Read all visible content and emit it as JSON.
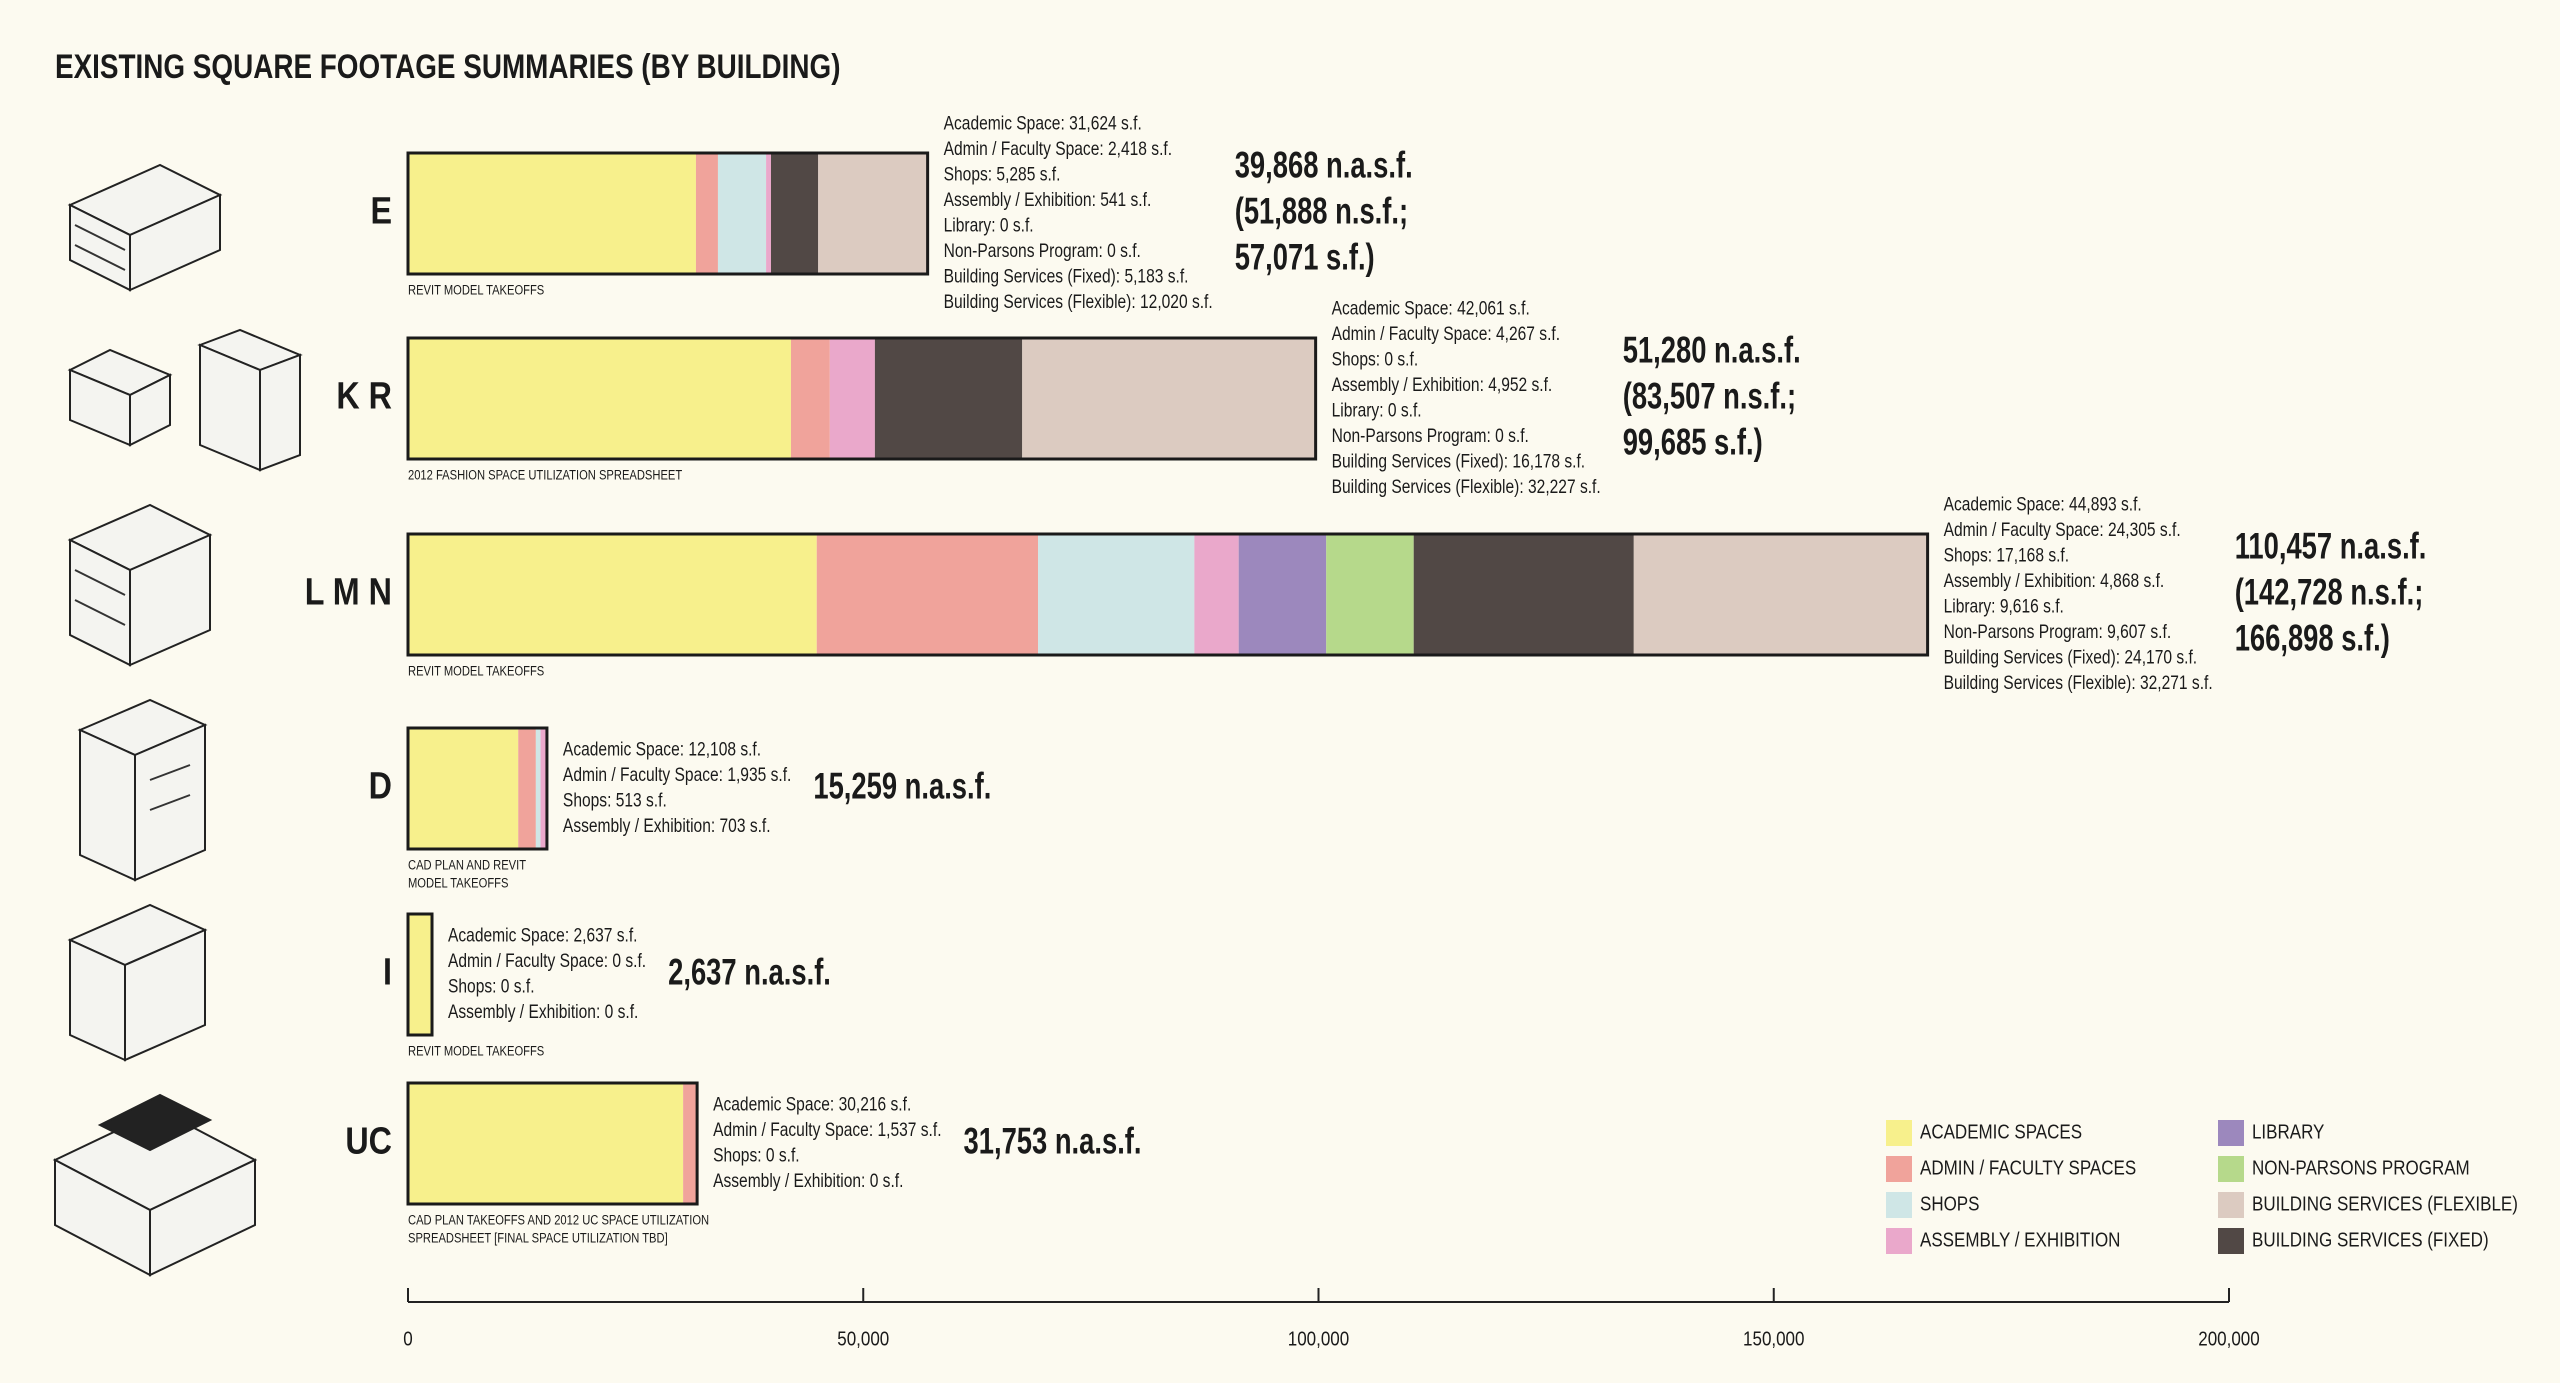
{
  "chart_data": {
    "type": "bar",
    "orientation": "horizontal",
    "stacked": true,
    "title": "EXISTING SQUARE FOOTAGE SUMMARIES (BY BUILDING)",
    "categories": [
      "E",
      "K R",
      "L M N",
      "D",
      "I",
      "UC"
    ],
    "series": [
      {
        "name": "ACADEMIC SPACES",
        "color": "#f7f08c",
        "values": [
          31624,
          42061,
          44893,
          12108,
          2637,
          30216
        ],
        "value_labels": [
          "Academic Space: 31,624 s.f.",
          "Academic Space: 42,061 s.f.",
          "Academic Space: 44,893 s.f.",
          "Academic Space: 12,108 s.f.",
          "Academic Space: 2,637 s.f.",
          "Academic Space: 30,216 s.f."
        ]
      },
      {
        "name": "ADMIN / FACULTY SPACES",
        "color": "#f0a39b",
        "values": [
          2418,
          4267,
          24305,
          1935,
          0,
          1537
        ],
        "value_labels": [
          "Admin / Faculty Space: 2,418 s.f.",
          "Admin / Faculty Space: 4,267 s.f.",
          "Admin / Faculty Space: 24,305 s.f.",
          "Admin / Faculty Space: 1,935 s.f.",
          "Admin / Faculty Space: 0 s.f.",
          "Admin / Faculty Space: 1,537 s.f."
        ]
      },
      {
        "name": "SHOPS",
        "color": "#cfe6e6",
        "values": [
          5285,
          0,
          17168,
          513,
          0,
          0
        ],
        "value_labels": [
          "Shops: 5,285 s.f.",
          "Shops: 0 s.f.",
          "Shops: 17,168 s.f.",
          "Shops: 513 s.f.",
          "Shops: 0 s.f.",
          "Shops: 0 s.f."
        ]
      },
      {
        "name": "ASSEMBLY / EXHIBITION",
        "color": "#eaa8cb",
        "values": [
          541,
          4952,
          4868,
          703,
          0,
          0
        ],
        "value_labels": [
          "Assembly / Exhibition: 541 s.f.",
          "Assembly / Exhibition: 4,952 s.f.",
          "Assembly / Exhibition: 4,868 s.f.",
          "Assembly / Exhibition: 703 s.f.",
          "Assembly / Exhibition: 0 s.f.",
          "Assembly / Exhibition: 0 s.f."
        ]
      },
      {
        "name": "LIBRARY",
        "color": "#9c88bd",
        "values": [
          0,
          0,
          9616,
          0,
          0,
          0
        ],
        "value_labels": [
          "Library: 0 s.f.",
          "Library: 0 s.f.",
          "Library: 9,616 s.f.",
          null,
          null,
          null
        ]
      },
      {
        "name": "NON-PARSONS PROGRAM",
        "color": "#b6d98b",
        "values": [
          0,
          0,
          9607,
          0,
          0,
          0
        ],
        "value_labels": [
          "Non-Parsons Program: 0 s.f.",
          "Non-Parsons Program: 0 s.f.",
          "Non-Parsons Program: 9,607 s.f.",
          null,
          null,
          null
        ]
      },
      {
        "name": "BUILDING SERVICES (FIXED)",
        "color": "#514845",
        "values": [
          5183,
          16178,
          24170,
          0,
          0,
          0
        ],
        "value_labels": [
          "Building Services (Fixed): 5,183 s.f.",
          "Building Services (Fixed): 16,178 s.f.",
          "Building Services (Fixed): 24,170 s.f.",
          null,
          null,
          null
        ]
      },
      {
        "name": "BUILDING SERVICES (FLEXIBLE)",
        "color": "#dccbc1",
        "values": [
          12020,
          32227,
          32271,
          0,
          0,
          0
        ],
        "value_labels": [
          "Building Services (Flexible): 12,020 s.f.",
          "Building Services (Flexible): 32,227 s.f.",
          "Building Services (Flexible): 32,271 s.f.",
          null,
          null,
          null
        ]
      }
    ],
    "totals": [
      [
        "39,868 n.a.s.f.",
        "(51,888 n.s.f.;",
        "57,071 s.f.)"
      ],
      [
        "51,280 n.a.s.f.",
        "(83,507 n.s.f.;",
        "99,685 s.f.)"
      ],
      [
        "110,457 n.a.s.f.",
        "(142,728 n.s.f.;",
        "166,898 s.f.)"
      ],
      [
        "15,259 n.a.s.f."
      ],
      [
        "2,637 n.a.s.f."
      ],
      [
        "31,753 n.a.s.f."
      ]
    ],
    "notes": [
      [
        "REVIT MODEL TAKEOFFS"
      ],
      [
        "2012 FASHION SPACE UTILIZATION SPREADSHEET"
      ],
      [
        "REVIT MODEL TAKEOFFS"
      ],
      [
        "CAD PLAN AND REVIT",
        "MODEL TAKEOFFS"
      ],
      [
        "REVIT MODEL TAKEOFFS"
      ],
      [
        "CAD PLAN TAKEOFFS AND 2012 UC SPACE UTILIZATION",
        "SPREADSHEET [FINAL SPACE UTILIZATION TBD]"
      ]
    ],
    "xlim": [
      0,
      200000
    ],
    "xticks": [
      0,
      {
        "value": 50000,
        "label": "50,000"
      },
      {
        "value": 100000,
        "label": "100,000"
      },
      {
        "value": 150000,
        "label": "150,000"
      },
      {
        "value": 200000,
        "label": "200,000"
      }
    ]
  }
}
